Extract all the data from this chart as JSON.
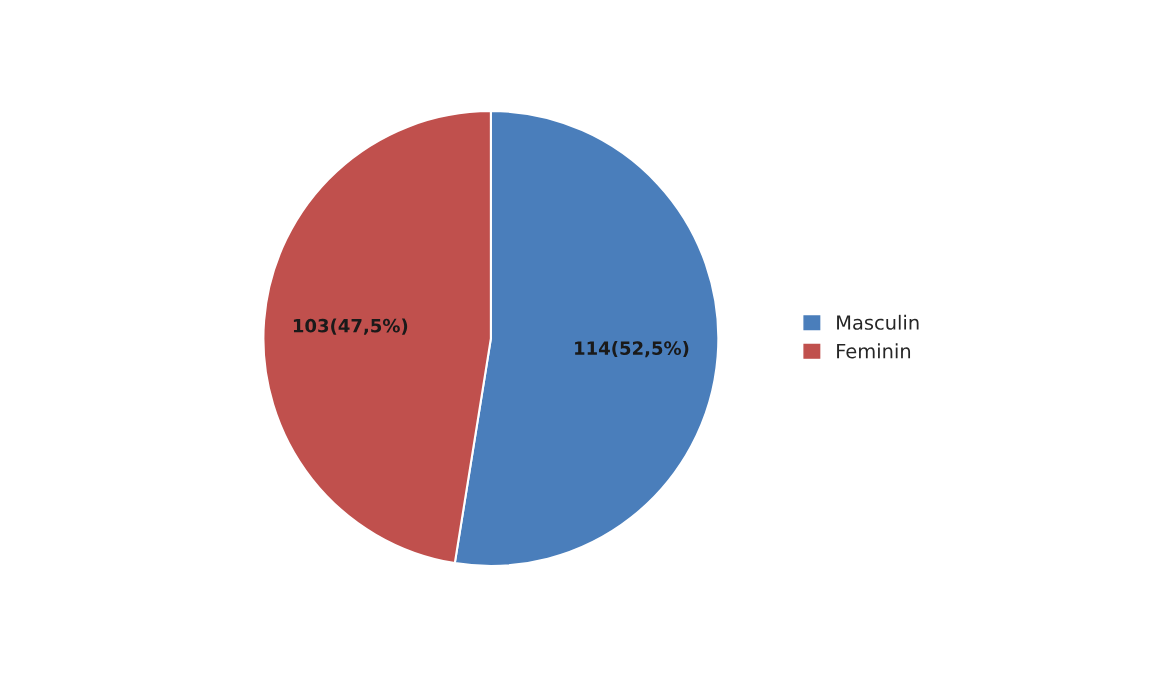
{
  "chart_data": {
    "type": "pie",
    "categories": [
      "Masculin",
      "Feminin"
    ],
    "values": [
      114,
      103
    ],
    "colors": [
      "#4a7ebb",
      "#c0504d"
    ],
    "value_labels": [
      "114(52,5%)",
      "103(47,5%)"
    ],
    "legend": "right"
  }
}
